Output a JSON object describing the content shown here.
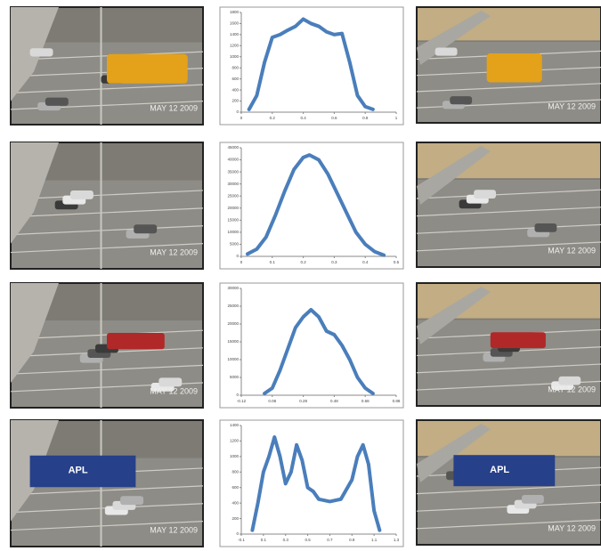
{
  "rows": [
    {
      "left_photo": {
        "timestamp": "MAY 12 2009"
      },
      "right_photo": {
        "timestamp": "MAY 12 2009"
      }
    },
    {
      "left_photo": {
        "timestamp": "MAY 12 2009"
      },
      "right_photo": {
        "timestamp": "MAY 12 2009"
      }
    },
    {
      "left_photo": {
        "timestamp": "MAY 12 2009"
      },
      "right_photo": {
        "timestamp": "MAY 12 2009"
      }
    },
    {
      "left_photo": {
        "timestamp": "MAY 12 2009",
        "truck_label": "APL"
      },
      "right_photo": {
        "timestamp": "MAY 12 2009",
        "truck_label": "APL"
      }
    }
  ],
  "chart_data": [
    {
      "type": "line",
      "x": [
        0.05,
        0.1,
        0.15,
        0.2,
        0.25,
        0.3,
        0.35,
        0.4,
        0.45,
        0.5,
        0.55,
        0.6,
        0.65,
        0.7,
        0.75,
        0.8,
        0.85
      ],
      "series": [
        {
          "color": "#4a7ebb",
          "values": [
            50,
            300,
            900,
            1350,
            1400,
            1480,
            1550,
            1680,
            1600,
            1550,
            1450,
            1400,
            1420,
            900,
            300,
            100,
            50
          ]
        }
      ],
      "xlim": [
        0,
        1
      ],
      "xticks": [
        0,
        0.2,
        0.4,
        0.6,
        0.8,
        1
      ],
      "ylim": [
        0,
        1800
      ],
      "yticks": [
        0,
        200,
        400,
        600,
        800,
        1000,
        1200,
        1400,
        1600,
        1800
      ]
    },
    {
      "type": "line",
      "x": [
        0.02,
        0.05,
        0.08,
        0.11,
        0.14,
        0.17,
        0.2,
        0.22,
        0.25,
        0.28,
        0.31,
        0.34,
        0.37,
        0.4,
        0.43,
        0.46
      ],
      "series": [
        {
          "color": "#4a7ebb",
          "values": [
            1000,
            3000,
            8000,
            17000,
            27000,
            36000,
            41000,
            42000,
            40000,
            34000,
            26000,
            18000,
            10000,
            5000,
            2000,
            500
          ]
        }
      ],
      "xlim": [
        0,
        0.5
      ],
      "xticks": [
        0,
        0.1,
        0.2,
        0.3,
        0.4,
        0.5
      ],
      "ylim": [
        0,
        45000
      ],
      "yticks": [
        0,
        5000,
        10000,
        15000,
        20000,
        25000,
        30000,
        35000,
        40000,
        45000
      ]
    },
    {
      "type": "line",
      "x": [
        0.03,
        0.08,
        0.13,
        0.18,
        0.23,
        0.28,
        0.33,
        0.38,
        0.43,
        0.48,
        0.53,
        0.58,
        0.63,
        0.68,
        0.73
      ],
      "series": [
        {
          "color": "#4a7ebb",
          "values": [
            500,
            2000,
            7000,
            13000,
            19000,
            22000,
            24000,
            22000,
            18000,
            17000,
            14000,
            10000,
            5000,
            2000,
            500
          ]
        }
      ],
      "xlim": [
        -0.12,
        0.88
      ],
      "xticks": [
        -0.12,
        0.08,
        0.28,
        0.48,
        0.68,
        0.88
      ],
      "ylim": [
        0,
        30000
      ],
      "yticks": [
        0,
        5000,
        10000,
        15000,
        20000,
        25000,
        30000
      ]
    },
    {
      "type": "line",
      "x": [
        0,
        0.05,
        0.1,
        0.15,
        0.2,
        0.25,
        0.3,
        0.35,
        0.4,
        0.45,
        0.5,
        0.55,
        0.6,
        0.7,
        0.8,
        0.9,
        0.95,
        1.0,
        1.05,
        1.1,
        1.15
      ],
      "series": [
        {
          "color": "#4a7ebb",
          "values": [
            50,
            400,
            800,
            1000,
            1250,
            1000,
            650,
            800,
            1150,
            950,
            600,
            550,
            450,
            420,
            450,
            700,
            1000,
            1150,
            900,
            300,
            50
          ]
        }
      ],
      "xlim": [
        -0.1,
        1.3
      ],
      "xticks": [
        -0.1,
        0.1,
        0.3,
        0.5,
        0.7,
        0.9,
        1.1,
        1.3
      ],
      "ylim": [
        0,
        1400
      ],
      "yticks": [
        0,
        200,
        400,
        600,
        800,
        1000,
        1200,
        1400
      ]
    }
  ]
}
